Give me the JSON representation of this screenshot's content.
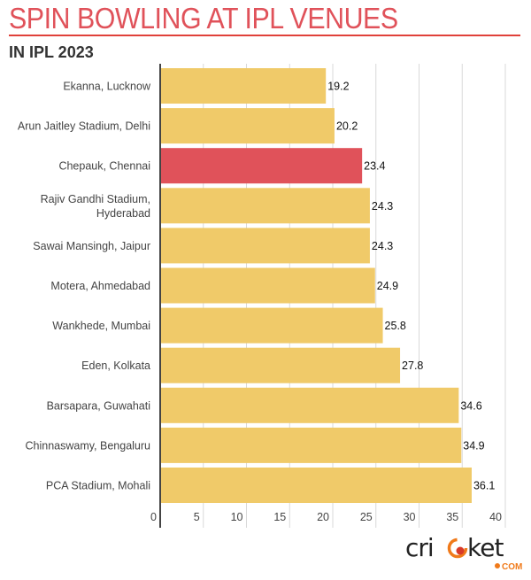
{
  "header": {
    "title": "SPIN BOWLING AT IPL VENUES",
    "subtitle": "IN IPL 2023"
  },
  "logo": {
    "text": "cricket",
    "suffix": "COM",
    "dark_color": "#222222",
    "accent_color": "#f07a1a"
  },
  "colors": {
    "default_bar": "#f0ca69",
    "highlight_bar": "#e0525a",
    "grid": "#d9d9d9",
    "axis": "#444444"
  },
  "chart_data": {
    "type": "bar",
    "orientation": "horizontal",
    "title": "SPIN BOWLING AT IPL VENUES",
    "subtitle": "IN IPL 2023",
    "xlabel": "",
    "ylabel": "",
    "xlim": [
      0,
      40
    ],
    "ticks": [
      0,
      5,
      10,
      15,
      20,
      25,
      30,
      35,
      40
    ],
    "tick_labels": [
      "0",
      "5",
      "10",
      "15",
      "20",
      "25",
      "30",
      "35",
      "40"
    ],
    "grid": true,
    "legend": "none",
    "categories": [
      "Ekanna, Lucknow",
      "Arun Jaitley Stadium, Delhi",
      "Chepauk, Chennai",
      "Rajiv Gandhi Stadium, Hyderabad",
      "Sawai Mansingh, Jaipur",
      "Motera, Ahmedabad",
      "Wankhede, Mumbai",
      "Eden, Kolkata",
      "Barsapara, Guwahati",
      "Chinnaswamy, Bengaluru",
      "PCA Stadium, Mohali"
    ],
    "category_lines": [
      [
        "Ekanna, Lucknow"
      ],
      [
        "Arun Jaitley Stadium, Delhi"
      ],
      [
        "Chepauk, Chennai"
      ],
      [
        "Rajiv Gandhi Stadium,",
        "Hyderabad"
      ],
      [
        "Sawai Mansingh, Jaipur"
      ],
      [
        "Motera, Ahmedabad"
      ],
      [
        "Wankhede, Mumbai"
      ],
      [
        "Eden, Kolkata"
      ],
      [
        "Barsapara, Guwahati"
      ],
      [
        "Chinnaswamy, Bengaluru"
      ],
      [
        "PCA Stadium, Mohali"
      ]
    ],
    "values": [
      19.2,
      20.2,
      23.4,
      24.3,
      24.3,
      24.9,
      25.8,
      27.8,
      34.6,
      34.9,
      36.1
    ],
    "value_labels": [
      "19.2",
      "20.2",
      "23.4",
      "24.3",
      "24.3",
      "24.9",
      "25.8",
      "27.8",
      "34.6",
      "34.9",
      "36.1"
    ],
    "highlight": [
      "Chepauk, Chennai"
    ]
  }
}
